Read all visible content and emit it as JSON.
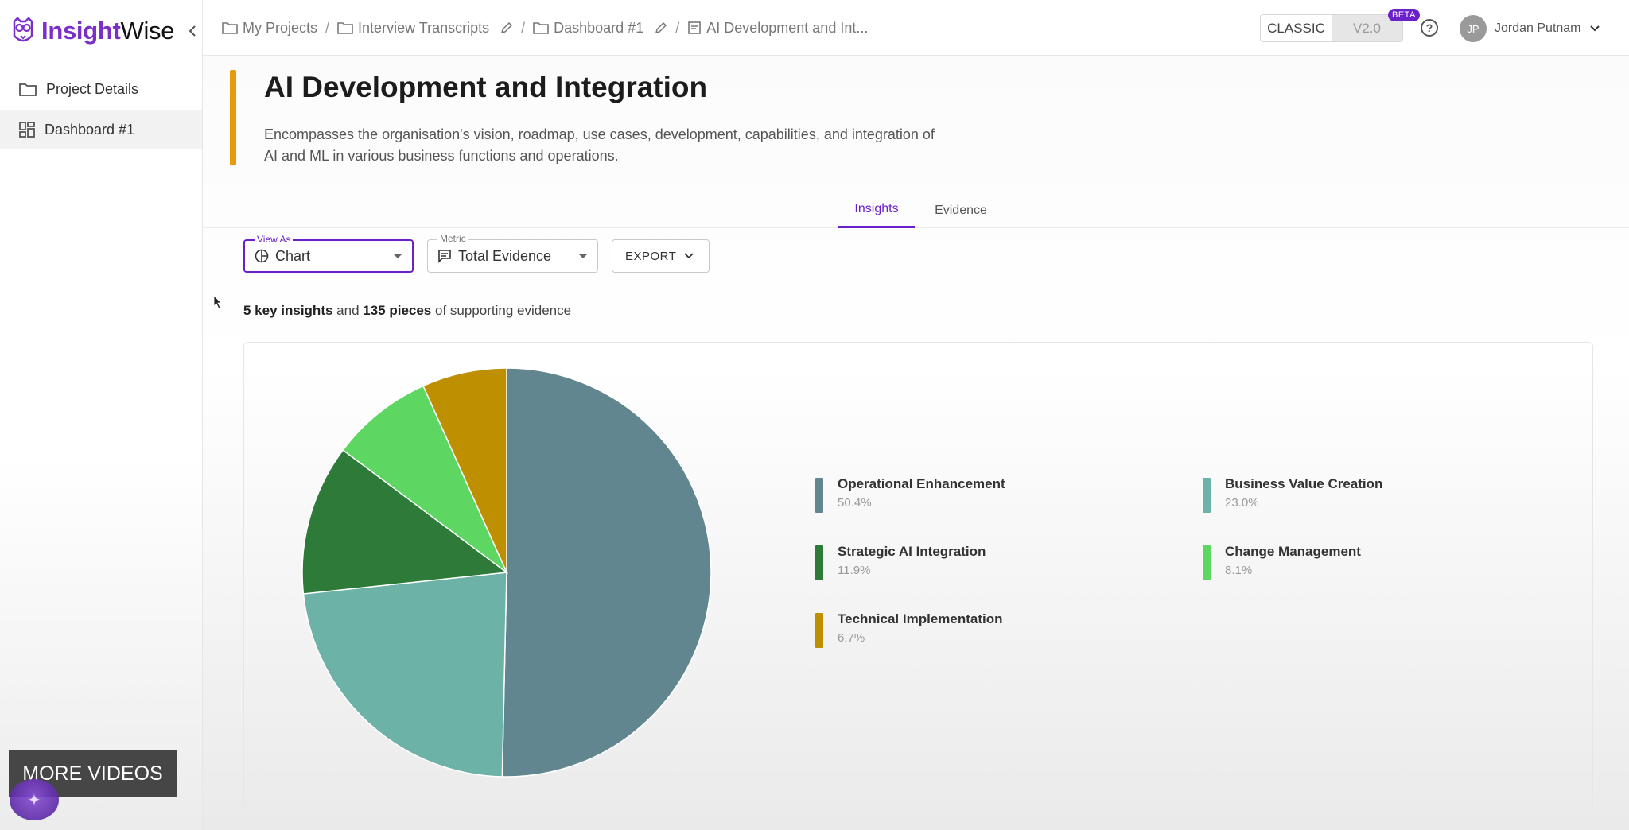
{
  "brand": {
    "name_bold": "Insight",
    "name_rest": "Wise"
  },
  "sidebar": {
    "items": [
      {
        "label": "Project Details",
        "icon": "folder-icon"
      },
      {
        "label": "Dashboard #1",
        "icon": "dashboard-icon",
        "active": true
      }
    ]
  },
  "breadcrumbs": [
    {
      "label": "My Projects",
      "icon": "folder-icon"
    },
    {
      "label": "Interview Transcripts",
      "icon": "folder-icon"
    },
    {
      "label": "Dashboard #1",
      "icon": "folder-icon"
    },
    {
      "label": "AI Development and Int...",
      "icon": "document-icon"
    }
  ],
  "header": {
    "classic_label": "CLASSIC",
    "v2_label": "V2.0",
    "beta_label": "BETA",
    "help_glyph": "?",
    "user_initials": "JP",
    "user_name": "Jordan Putnam"
  },
  "page": {
    "title": "AI Development and Integration",
    "description": "Encompasses the organisation's vision, roadmap, use cases, development, capabilities, and integration of AI and ML in various business functions and operations.",
    "accent_color": "#e89a0c"
  },
  "tabs": [
    {
      "label": "Insights",
      "active": true
    },
    {
      "label": "Evidence",
      "active": false
    }
  ],
  "controls": {
    "view_as_label": "View As",
    "view_as_value": "Chart",
    "metric_label": "Metric",
    "metric_value": "Total Evidence",
    "export_label": "EXPORT"
  },
  "summary": {
    "insights_count": "5 key insights",
    "connector": " and ",
    "pieces_count": "135 pieces",
    "suffix": " of supporting evidence"
  },
  "chart_data": {
    "type": "pie",
    "slices": [
      {
        "label": "Operational Enhancement",
        "value": 50.4,
        "display": "50.4%",
        "color": "#62868f"
      },
      {
        "label": "Business Value Creation",
        "value": 23.0,
        "display": "23.0%",
        "color": "#6db2a6"
      },
      {
        "label": "Strategic AI Integration",
        "value": 11.9,
        "display": "11.9%",
        "color": "#2e7b39"
      },
      {
        "label": "Change Management",
        "value": 8.1,
        "display": "8.1%",
        "color": "#5ed662"
      },
      {
        "label": "Technical Implementation",
        "value": 6.7,
        "display": "6.7%",
        "color": "#bf8f02"
      }
    ],
    "legend_position": "right"
  },
  "overlay": {
    "more_videos_label": "MORE VIDEOS",
    "fab_glyph": "✦"
  }
}
